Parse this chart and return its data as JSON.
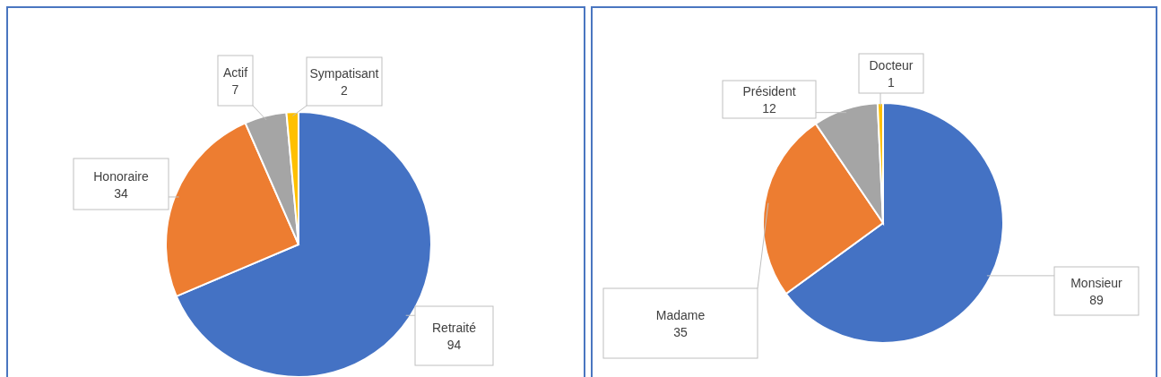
{
  "chart_data": [
    {
      "type": "pie",
      "categories": [
        "Retraité",
        "Honoraire",
        "Actif",
        "Sympatisant"
      ],
      "values": [
        94,
        34,
        7,
        2
      ],
      "colors": [
        "#4472c4",
        "#ed7d31",
        "#a5a5a5",
        "#ffc000"
      ],
      "data_labels": true
    },
    {
      "type": "pie",
      "categories": [
        "Monsieur",
        "Madame",
        "Président",
        "Docteur"
      ],
      "values": [
        89,
        35,
        12,
        1
      ],
      "colors": [
        "#4472c4",
        "#ed7d31",
        "#a5a5a5",
        "#ffc000"
      ],
      "data_labels": true
    }
  ]
}
